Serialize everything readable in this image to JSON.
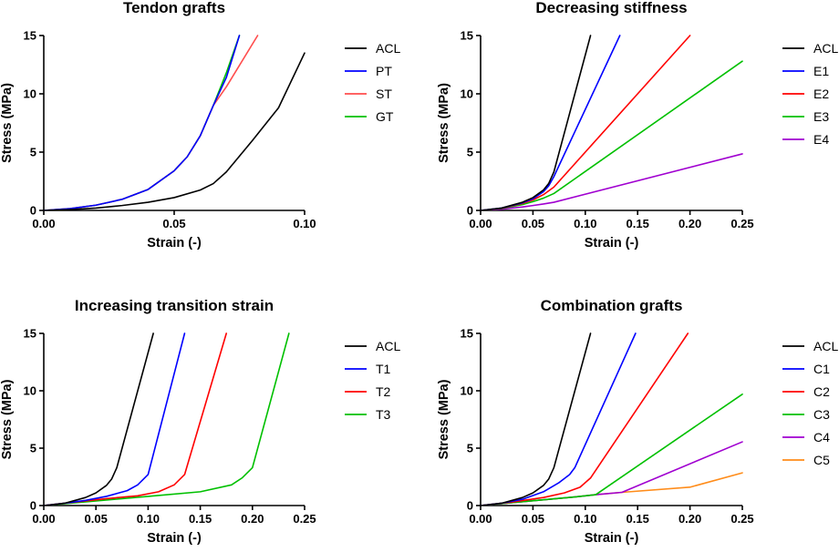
{
  "chart_data": [
    {
      "type": "line",
      "title": "Tendon grafts",
      "xlabel": "Strain (-)",
      "ylabel": "Stress (MPa)",
      "xlim": [
        0,
        0.1
      ],
      "ylim": [
        0,
        15
      ],
      "xticks": [
        0,
        0.05,
        0.1
      ],
      "xtick_labels": [
        "0.00",
        "0.05",
        "0.10"
      ],
      "yticks": [
        0,
        5,
        10,
        15
      ],
      "ytick_labels": [
        "0",
        "5",
        "10",
        "15"
      ],
      "legend_position": "right",
      "series": [
        {
          "name": "ACL",
          "color": "#000000",
          "points": [
            [
              0,
              0
            ],
            [
              0.01,
              0.07
            ],
            [
              0.02,
              0.2
            ],
            [
              0.03,
              0.42
            ],
            [
              0.04,
              0.7
            ],
            [
              0.05,
              1.1
            ],
            [
              0.06,
              1.75
            ],
            [
              0.065,
              2.3
            ],
            [
              0.07,
              3.3
            ],
            [
              0.08,
              6.0
            ],
            [
              0.09,
              8.8
            ],
            [
              0.1,
              13.5
            ]
          ]
        },
        {
          "name": "PT",
          "color": "#0000ff",
          "points": [
            [
              0,
              0
            ],
            [
              0.01,
              0.15
            ],
            [
              0.02,
              0.45
            ],
            [
              0.03,
              0.95
            ],
            [
              0.04,
              1.8
            ],
            [
              0.05,
              3.4
            ],
            [
              0.055,
              4.6
            ],
            [
              0.06,
              6.4
            ],
            [
              0.065,
              9.0
            ],
            [
              0.07,
              11.4
            ],
            [
              0.075,
              15
            ]
          ]
        },
        {
          "name": "ST",
          "color": "#ff4d4d",
          "points": [
            [
              0,
              0
            ],
            [
              0.01,
              0.15
            ],
            [
              0.02,
              0.45
            ],
            [
              0.03,
              0.95
            ],
            [
              0.04,
              1.8
            ],
            [
              0.05,
              3.4
            ],
            [
              0.055,
              4.6
            ],
            [
              0.06,
              6.4
            ],
            [
              0.065,
              9.0
            ],
            [
              0.07,
              10.6
            ],
            [
              0.082,
              15
            ]
          ]
        },
        {
          "name": "GT",
          "color": "#00c000",
          "points": [
            [
              0,
              0
            ],
            [
              0.01,
              0.15
            ],
            [
              0.02,
              0.45
            ],
            [
              0.03,
              0.95
            ],
            [
              0.04,
              1.8
            ],
            [
              0.05,
              3.4
            ],
            [
              0.055,
              4.6
            ],
            [
              0.06,
              6.4
            ],
            [
              0.065,
              9.0
            ],
            [
              0.07,
              11.8
            ],
            [
              0.075,
              15
            ]
          ]
        }
      ]
    },
    {
      "type": "line",
      "title": "Decreasing stiffness",
      "xlabel": "Strain (-)",
      "ylabel": "Stress (MPa)",
      "xlim": [
        0,
        0.25
      ],
      "ylim": [
        0,
        15
      ],
      "xticks": [
        0,
        0.05,
        0.1,
        0.15,
        0.2,
        0.25
      ],
      "xtick_labels": [
        "0.00",
        "0.05",
        "0.10",
        "0.15",
        "0.20",
        "0.25"
      ],
      "yticks": [
        0,
        5,
        10,
        15
      ],
      "ytick_labels": [
        "0",
        "5",
        "10",
        "15"
      ],
      "legend_position": "right",
      "series": [
        {
          "name": "ACL",
          "color": "#000000",
          "points": [
            [
              0,
              0
            ],
            [
              0.02,
              0.2
            ],
            [
              0.04,
              0.7
            ],
            [
              0.05,
              1.1
            ],
            [
              0.06,
              1.75
            ],
            [
              0.065,
              2.3
            ],
            [
              0.07,
              3.3
            ],
            [
              0.105,
              15
            ]
          ]
        },
        {
          "name": "E1",
          "color": "#0000ff",
          "points": [
            [
              0,
              0
            ],
            [
              0.02,
              0.2
            ],
            [
              0.04,
              0.65
            ],
            [
              0.05,
              1.0
            ],
            [
              0.06,
              1.6
            ],
            [
              0.065,
              2.1
            ],
            [
              0.07,
              2.9
            ],
            [
              0.133,
              15
            ]
          ]
        },
        {
          "name": "E2",
          "color": "#ff0000",
          "points": [
            [
              0,
              0
            ],
            [
              0.02,
              0.18
            ],
            [
              0.04,
              0.6
            ],
            [
              0.05,
              0.9
            ],
            [
              0.06,
              1.35
            ],
            [
              0.07,
              2.0
            ],
            [
              0.2,
              15
            ]
          ]
        },
        {
          "name": "E3",
          "color": "#00c000",
          "points": [
            [
              0,
              0
            ],
            [
              0.02,
              0.16
            ],
            [
              0.04,
              0.5
            ],
            [
              0.05,
              0.75
            ],
            [
              0.06,
              1.05
            ],
            [
              0.07,
              1.45
            ],
            [
              0.25,
              12.8
            ]
          ]
        },
        {
          "name": "E4",
          "color": "#a000d0",
          "points": [
            [
              0,
              0
            ],
            [
              0.02,
              0.1
            ],
            [
              0.04,
              0.3
            ],
            [
              0.05,
              0.42
            ],
            [
              0.06,
              0.55
            ],
            [
              0.07,
              0.7
            ],
            [
              0.25,
              4.85
            ]
          ]
        }
      ]
    },
    {
      "type": "line",
      "title": "Increasing transition strain",
      "xlabel": "Strain (-)",
      "ylabel": "Stress (MPa)",
      "xlim": [
        0,
        0.25
      ],
      "ylim": [
        0,
        15
      ],
      "xticks": [
        0,
        0.05,
        0.1,
        0.15,
        0.2,
        0.25
      ],
      "xtick_labels": [
        "0.00",
        "0.05",
        "0.10",
        "0.15",
        "0.20",
        "0.25"
      ],
      "yticks": [
        0,
        5,
        10,
        15
      ],
      "ytick_labels": [
        "0",
        "5",
        "10",
        "15"
      ],
      "legend_position": "right",
      "series": [
        {
          "name": "ACL",
          "color": "#000000",
          "points": [
            [
              0,
              0
            ],
            [
              0.02,
              0.2
            ],
            [
              0.04,
              0.7
            ],
            [
              0.05,
              1.1
            ],
            [
              0.06,
              1.75
            ],
            [
              0.065,
              2.3
            ],
            [
              0.07,
              3.3
            ],
            [
              0.105,
              15
            ]
          ]
        },
        {
          "name": "T1",
          "color": "#0000ff",
          "points": [
            [
              0,
              0
            ],
            [
              0.02,
              0.2
            ],
            [
              0.04,
              0.45
            ],
            [
              0.06,
              0.8
            ],
            [
              0.08,
              1.3
            ],
            [
              0.09,
              1.8
            ],
            [
              0.1,
              2.7
            ],
            [
              0.135,
              15
            ]
          ]
        },
        {
          "name": "T2",
          "color": "#ff0000",
          "points": [
            [
              0,
              0
            ],
            [
              0.03,
              0.3
            ],
            [
              0.06,
              0.6
            ],
            [
              0.09,
              0.85
            ],
            [
              0.11,
              1.2
            ],
            [
              0.125,
              1.8
            ],
            [
              0.135,
              2.7
            ],
            [
              0.175,
              15
            ]
          ]
        },
        {
          "name": "T3",
          "color": "#00c000",
          "points": [
            [
              0,
              0
            ],
            [
              0.05,
              0.4
            ],
            [
              0.1,
              0.8
            ],
            [
              0.15,
              1.2
            ],
            [
              0.18,
              1.8
            ],
            [
              0.19,
              2.4
            ],
            [
              0.2,
              3.3
            ],
            [
              0.235,
              15
            ]
          ]
        }
      ]
    },
    {
      "type": "line",
      "title": "Combination grafts",
      "xlabel": "Strain (-)",
      "ylabel": "Stress (MPa)",
      "xlim": [
        0,
        0.25
      ],
      "ylim": [
        0,
        15
      ],
      "xticks": [
        0,
        0.05,
        0.1,
        0.15,
        0.2,
        0.25
      ],
      "xtick_labels": [
        "0.00",
        "0.05",
        "0.10",
        "0.15",
        "0.20",
        "0.25"
      ],
      "yticks": [
        0,
        5,
        10,
        15
      ],
      "ytick_labels": [
        "0",
        "5",
        "10",
        "15"
      ],
      "legend_position": "right",
      "series": [
        {
          "name": "ACL",
          "color": "#000000",
          "points": [
            [
              0,
              0
            ],
            [
              0.02,
              0.2
            ],
            [
              0.04,
              0.7
            ],
            [
              0.05,
              1.1
            ],
            [
              0.06,
              1.75
            ],
            [
              0.065,
              2.3
            ],
            [
              0.07,
              3.3
            ],
            [
              0.105,
              15
            ]
          ]
        },
        {
          "name": "C1",
          "color": "#0000ff",
          "points": [
            [
              0,
              0
            ],
            [
              0.02,
              0.2
            ],
            [
              0.04,
              0.55
            ],
            [
              0.06,
              1.2
            ],
            [
              0.075,
              2.0
            ],
            [
              0.085,
              2.7
            ],
            [
              0.09,
              3.3
            ],
            [
              0.148,
              15
            ]
          ]
        },
        {
          "name": "C2",
          "color": "#ff0000",
          "points": [
            [
              0,
              0
            ],
            [
              0.03,
              0.3
            ],
            [
              0.06,
              0.7
            ],
            [
              0.08,
              1.1
            ],
            [
              0.095,
              1.6
            ],
            [
              0.105,
              2.4
            ],
            [
              0.198,
              15
            ]
          ]
        },
        {
          "name": "C3",
          "color": "#00c000",
          "points": [
            [
              0,
              0
            ],
            [
              0.03,
              0.25
            ],
            [
              0.06,
              0.5
            ],
            [
              0.09,
              0.75
            ],
            [
              0.11,
              0.95
            ],
            [
              0.25,
              9.7
            ]
          ]
        },
        {
          "name": "C4",
          "color": "#a000d0",
          "points": [
            [
              0,
              0
            ],
            [
              0.03,
              0.25
            ],
            [
              0.06,
              0.5
            ],
            [
              0.09,
              0.75
            ],
            [
              0.11,
              0.95
            ],
            [
              0.135,
              1.15
            ],
            [
              0.25,
              5.55
            ]
          ]
        },
        {
          "name": "C5",
          "color": "#ff8c1a",
          "points": [
            [
              0,
              0
            ],
            [
              0.03,
              0.25
            ],
            [
              0.06,
              0.5
            ],
            [
              0.09,
              0.75
            ],
            [
              0.11,
              0.95
            ],
            [
              0.135,
              1.15
            ],
            [
              0.2,
              1.6
            ],
            [
              0.25,
              2.85
            ]
          ]
        }
      ]
    }
  ]
}
